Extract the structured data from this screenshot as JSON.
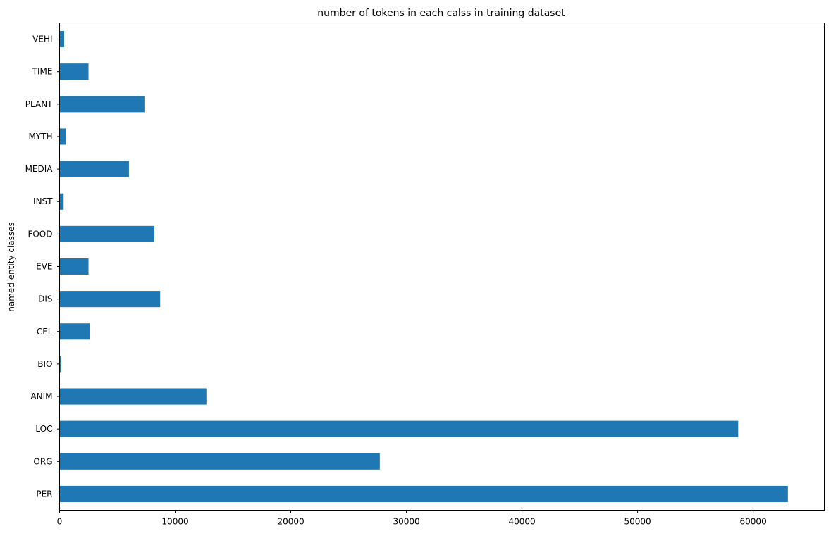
{
  "chart_data": {
    "type": "bar",
    "orientation": "horizontal",
    "title": "number of tokens in each calss in training dataset",
    "xlabel": "",
    "ylabel": "named entity classes",
    "categories": [
      "PER",
      "ORG",
      "LOC",
      "ANIM",
      "BIO",
      "CEL",
      "DIS",
      "EVE",
      "FOOD",
      "INST",
      "MEDIA",
      "MYTH",
      "PLANT",
      "TIME",
      "VEHI"
    ],
    "values": [
      63000,
      27700,
      58700,
      12700,
      150,
      2600,
      8700,
      2500,
      8200,
      350,
      6000,
      550,
      7400,
      2500,
      400
    ],
    "xlim": [
      0,
      66150
    ],
    "xticks": [
      0,
      10000,
      20000,
      30000,
      40000,
      50000,
      60000
    ],
    "grid": false,
    "legend": "none",
    "bar_color": "#1f77b4"
  }
}
